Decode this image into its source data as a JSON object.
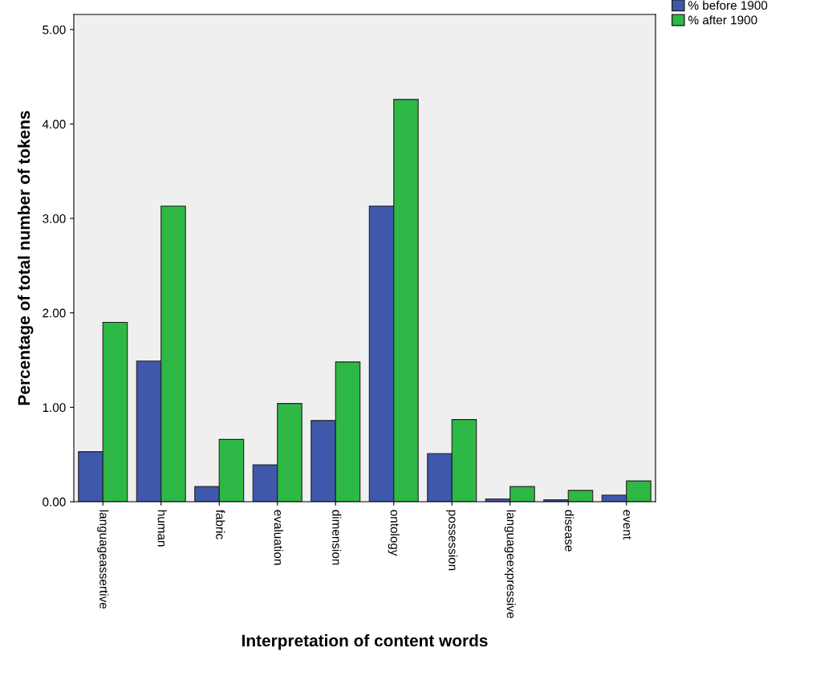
{
  "chart_data": {
    "type": "bar",
    "xlabel": "Interpretation of content words",
    "ylabel": "Percentage of total number of tokens",
    "categories": [
      "languageassertive",
      "human",
      "fabric",
      "evaluation",
      "dimension",
      "ontology",
      "possession",
      "languageexpressive",
      "disease",
      "event"
    ],
    "series": [
      {
        "name": "% before 1900",
        "color": "#3e58ac",
        "values": [
          0.53,
          1.49,
          0.16,
          0.39,
          0.86,
          3.13,
          0.51,
          0.03,
          0.02,
          0.07
        ]
      },
      {
        "name": "% after 1900",
        "color": "#2eb845",
        "values": [
          1.9,
          3.13,
          0.66,
          1.04,
          1.48,
          4.26,
          0.87,
          0.16,
          0.12,
          0.22
        ]
      }
    ],
    "ylim": [
      0,
      5.16
    ],
    "yticks": [
      {
        "value": 0,
        "label": "0.00"
      },
      {
        "value": 1,
        "label": "1.00"
      },
      {
        "value": 2,
        "label": "2.00"
      },
      {
        "value": 3,
        "label": "3.00"
      },
      {
        "value": 4,
        "label": "4.00"
      },
      {
        "value": 5,
        "label": "5.00"
      }
    ],
    "grid": false,
    "legend": "top right"
  }
}
